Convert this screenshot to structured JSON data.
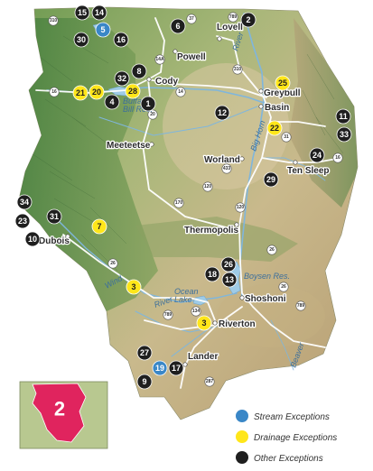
{
  "region": {
    "number": "2"
  },
  "colors": {
    "stream": "#3a87c7",
    "drainage": "#ffe61a",
    "other": "#1f1f1f",
    "region_fill": "#e0245e",
    "lake": "#9fcbe6",
    "river": "#7fb6dd",
    "road": "#ffffff"
  },
  "legend": [
    {
      "kind": "stream",
      "label": "Stream Exceptions"
    },
    {
      "kind": "drainage",
      "label": "Drainage Exceptions"
    },
    {
      "kind": "other",
      "label": "Other Exceptions"
    }
  ],
  "towns": [
    {
      "id": "lovell",
      "name": "Lovell"
    },
    {
      "id": "powell",
      "name": "Powell"
    },
    {
      "id": "cody",
      "name": "Cody"
    },
    {
      "id": "greybull",
      "name": "Greybull"
    },
    {
      "id": "basin",
      "name": "Basin"
    },
    {
      "id": "meeteetse",
      "name": "Meeteetse"
    },
    {
      "id": "worland",
      "name": "Worland"
    },
    {
      "id": "tensleep",
      "name": "Ten Sleep"
    },
    {
      "id": "thermopolis",
      "name": "Thermopolis"
    },
    {
      "id": "dubois",
      "name": "Dubois"
    },
    {
      "id": "shoshoni",
      "name": "Shoshoni"
    },
    {
      "id": "riverton",
      "name": "Riverton"
    },
    {
      "id": "lander",
      "name": "Lander"
    }
  ],
  "water_labels": [
    {
      "id": "buffalo",
      "lines": [
        "Buffalo",
        "Bill Res."
      ]
    },
    {
      "id": "boysen",
      "lines": [
        "Boysen Res."
      ]
    },
    {
      "id": "ocean",
      "lines": [
        "Ocean",
        "Lake"
      ]
    },
    {
      "id": "wind",
      "lines": [
        "Wind"
      ]
    },
    {
      "id": "river_lower",
      "lines": [
        "River"
      ]
    },
    {
      "id": "bighorn",
      "lines": [
        "Big Horn"
      ]
    },
    {
      "id": "river_upper",
      "lines": [
        "River"
      ]
    },
    {
      "id": "beaver",
      "lines": [
        "Beaver"
      ]
    }
  ],
  "markers": [
    {
      "n": "15",
      "type": "other"
    },
    {
      "n": "14",
      "type": "other"
    },
    {
      "n": "5",
      "type": "stream"
    },
    {
      "n": "30",
      "type": "other"
    },
    {
      "n": "16",
      "type": "other"
    },
    {
      "n": "6",
      "type": "other"
    },
    {
      "n": "2",
      "type": "other"
    },
    {
      "n": "8",
      "type": "other"
    },
    {
      "n": "32",
      "type": "other"
    },
    {
      "n": "1",
      "type": "other"
    },
    {
      "n": "21",
      "type": "drainage"
    },
    {
      "n": "20",
      "type": "drainage"
    },
    {
      "n": "28",
      "type": "drainage"
    },
    {
      "n": "4",
      "type": "other"
    },
    {
      "n": "25",
      "type": "drainage"
    },
    {
      "n": "12",
      "type": "other"
    },
    {
      "n": "22",
      "type": "drainage"
    },
    {
      "n": "11",
      "type": "other"
    },
    {
      "n": "33",
      "type": "other"
    },
    {
      "n": "24",
      "type": "other"
    },
    {
      "n": "29",
      "type": "other"
    },
    {
      "n": "34",
      "type": "other"
    },
    {
      "n": "23",
      "type": "other"
    },
    {
      "n": "31",
      "type": "other"
    },
    {
      "n": "10",
      "type": "other"
    },
    {
      "n": "7",
      "type": "drainage"
    },
    {
      "n": "26",
      "type": "other"
    },
    {
      "n": "18",
      "type": "other"
    },
    {
      "n": "13",
      "type": "other"
    },
    {
      "n": "3",
      "type": "drainage"
    },
    {
      "n": "3",
      "type": "drainage"
    },
    {
      "n": "27",
      "type": "other"
    },
    {
      "n": "19",
      "type": "stream"
    },
    {
      "n": "17",
      "type": "other"
    },
    {
      "n": "9",
      "type": "other"
    }
  ],
  "routes": [
    "310",
    "37",
    "789",
    "14A",
    "310",
    "14",
    "16",
    "31",
    "20",
    "120",
    "170",
    "120",
    "16",
    "433",
    "26",
    "134",
    "287",
    "26",
    "789",
    "789",
    "26"
  ]
}
